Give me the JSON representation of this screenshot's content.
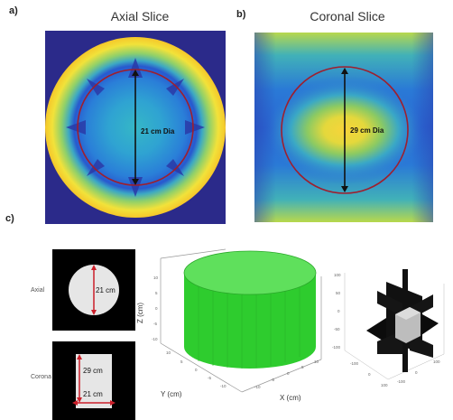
{
  "panel_a": {
    "letter": "a)",
    "title": "Axial Slice",
    "measure_label": "21 cm Dia"
  },
  "panel_b": {
    "letter": "b)",
    "title": "Coronal Slice",
    "measure_label": "29 cm Dia"
  },
  "panel_c": {
    "letter": "c)",
    "axial_label": "Axial",
    "axial_measure": "21 cm",
    "coronal_label": "Corona",
    "coronal_height": "29 cm",
    "coronal_width": "21 cm",
    "plot3d": {
      "z_axis_label": "Z (cm)",
      "y_axis_label": "Y (cm)",
      "x_axis_label": "X (cm)",
      "z_ticks": [
        "10",
        "5",
        "0",
        "-5",
        "-10"
      ],
      "y_ticks": [
        "10",
        "5",
        "0",
        "-5",
        "-10"
      ],
      "x_ticks": [
        "-10",
        "-5",
        "0",
        "5",
        "10"
      ]
    }
  },
  "colors": {
    "cylinder": "#2ecc2e",
    "circle_outline": "#9e1f2e",
    "arrow": "#cc1f2a"
  }
}
